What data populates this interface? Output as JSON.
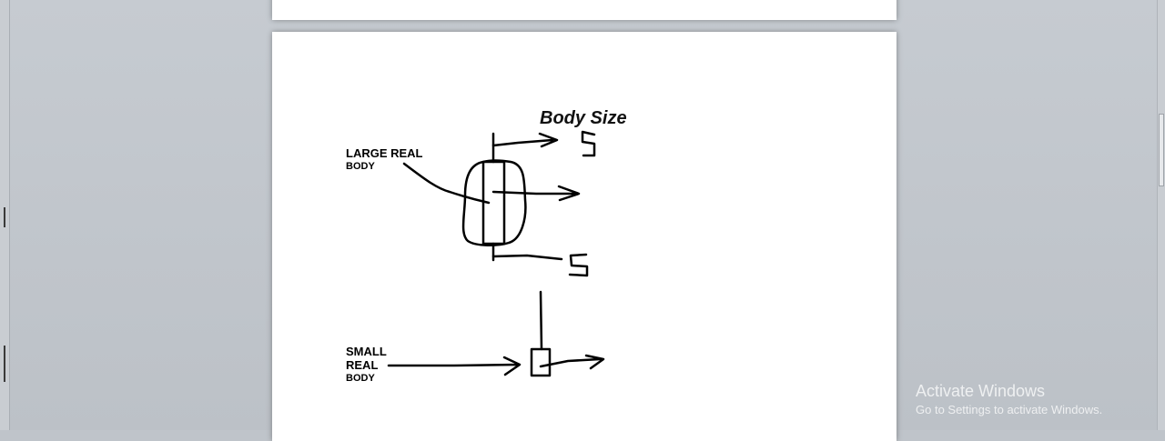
{
  "document": {
    "title": "Body Size",
    "labels": {
      "large_line1": "LARGE REAL",
      "large_line2": "BODY",
      "small_line1": "SMALL",
      "small_line2": "REAL",
      "small_line3": "BODY",
      "s_top": "S",
      "s_bottom": "S"
    }
  },
  "watermark": {
    "title": "Activate Windows",
    "subtitle": "Go to Settings to activate Windows."
  }
}
